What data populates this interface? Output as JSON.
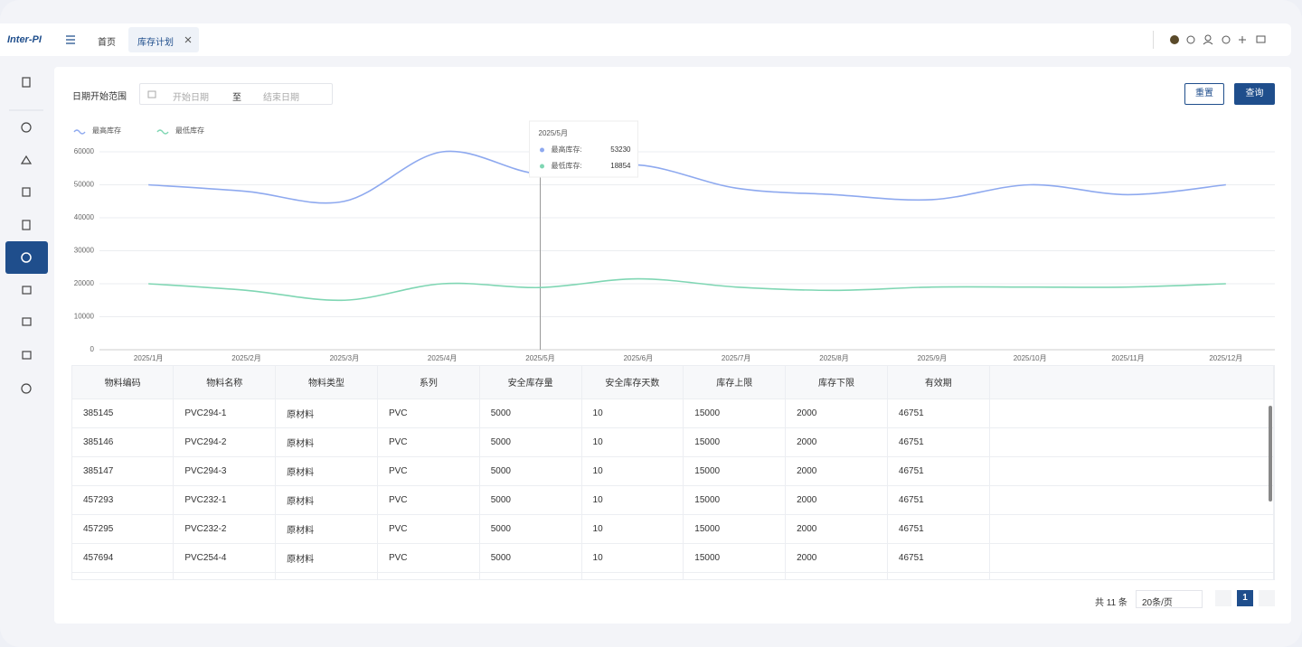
{
  "header": {
    "logo": "Inter-PI",
    "tabs": [
      "首页",
      "库存计划"
    ]
  },
  "filter": {
    "label": "日期开始范围",
    "start_placeholder": "开始日期",
    "separator": "至",
    "end_placeholder": "结束日期",
    "reset": "重置",
    "search": "查询"
  },
  "chart_data": {
    "type": "line",
    "categories": [
      "2025/1月",
      "2025/2月",
      "2025/3月",
      "2025/4月",
      "2025/5月",
      "2025/6月",
      "2025/7月",
      "2025/8月",
      "2025/9月",
      "2025/10月",
      "2025/11月",
      "2025/12月"
    ],
    "series": [
      {
        "name": "最高库存",
        "color": "#8ea9ef",
        "values": [
          50000,
          48000,
          45000,
          60000,
          53230,
          56000,
          49000,
          47000,
          45500,
          50000,
          47000,
          50000
        ]
      },
      {
        "name": "最低库存",
        "color": "#7fd6b3",
        "values": [
          20000,
          18000,
          15000,
          20000,
          18854,
          21500,
          19000,
          18000,
          19000,
          19000,
          19000,
          20000
        ]
      }
    ],
    "ylim": [
      0,
      60000
    ],
    "yticks": [
      0,
      10000,
      20000,
      30000,
      40000,
      50000,
      60000
    ],
    "grid": true,
    "tooltip": {
      "category_index": 4,
      "labels": [
        "最高库存:",
        "最低库存:"
      ]
    }
  },
  "table": {
    "headers": [
      "物料编码",
      "物料名称",
      "物料类型",
      "系列",
      "安全库存量",
      "安全库存天数",
      "库存上限",
      "库存下限",
      "有效期"
    ],
    "rows": [
      [
        "385145",
        "PVC294-1",
        "原材料",
        "PVC",
        "5000",
        "10",
        "15000",
        "2000",
        "46751"
      ],
      [
        "385146",
        "PVC294-2",
        "原材料",
        "PVC",
        "5000",
        "10",
        "15000",
        "2000",
        "46751"
      ],
      [
        "385147",
        "PVC294-3",
        "原材料",
        "PVC",
        "5000",
        "10",
        "15000",
        "2000",
        "46751"
      ],
      [
        "457293",
        "PVC232-1",
        "原材料",
        "PVC",
        "5000",
        "10",
        "15000",
        "2000",
        "46751"
      ],
      [
        "457295",
        "PVC232-2",
        "原材料",
        "PVC",
        "5000",
        "10",
        "15000",
        "2000",
        "46751"
      ],
      [
        "457694",
        "PVC254-4",
        "原材料",
        "PVC",
        "5000",
        "10",
        "15000",
        "2000",
        "46751"
      ]
    ]
  },
  "pagination": {
    "total": "共 11 条",
    "page_size": "20条/页",
    "current": "1"
  }
}
